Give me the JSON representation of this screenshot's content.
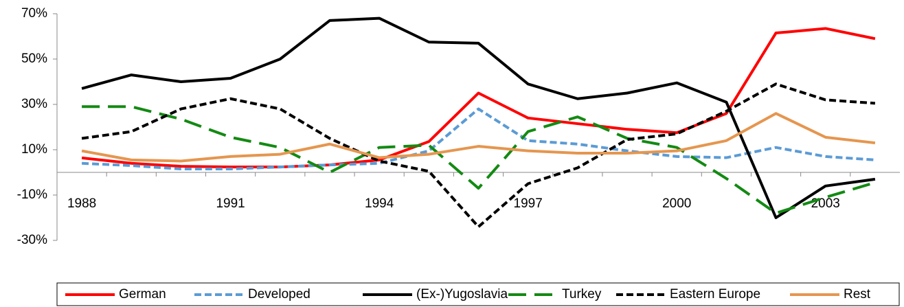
{
  "chart_data": {
    "type": "line",
    "categories": [
      "1988",
      null,
      null,
      "1991",
      null,
      null,
      "1994",
      null,
      null,
      "1997",
      null,
      null,
      "2000",
      null,
      null,
      "2003",
      null
    ],
    "ylim": [
      -30,
      70
    ],
    "yticks": [
      {
        "value": -30,
        "label": "-30%"
      },
      {
        "value": -10,
        "label": "-10%"
      },
      {
        "value": 10,
        "label": "10%"
      },
      {
        "value": 30,
        "label": "30%"
      },
      {
        "value": 50,
        "label": "50%"
      },
      {
        "value": 70,
        "label": "70%"
      }
    ],
    "grid": false,
    "legend": "bottom",
    "series": [
      {
        "name": "German",
        "color": "#ff0000",
        "dash": "solid",
        "values": [
          6.4,
          4,
          2.7,
          2.4,
          2.4,
          3.3,
          5.5,
          13.6,
          35,
          24,
          21.5,
          19,
          17.5,
          26,
          61.5,
          63.5,
          59
        ]
      },
      {
        "name": "Developed",
        "color": "#5b9bd5",
        "dash": "short",
        "values": [
          4,
          3,
          1.5,
          1.5,
          2.4,
          3.3,
          4,
          9.5,
          28,
          14,
          12.5,
          9.5,
          7,
          6.5,
          11,
          7,
          5.5
        ]
      },
      {
        "name": "(Ex-)Yugoslavia",
        "color": "#000000",
        "dash": "solid",
        "values": [
          37,
          43,
          40,
          41.5,
          50,
          67,
          68,
          57.5,
          57,
          39,
          32.5,
          35,
          39.5,
          31,
          -20,
          -6,
          -3
        ]
      },
      {
        "name": "Turkey",
        "color": "#138a13",
        "dash": "long",
        "values": [
          29,
          29,
          23.5,
          15.5,
          11,
          0,
          11,
          12,
          -7,
          18,
          24.5,
          15,
          11,
          -2.7,
          -18,
          -11,
          -4.5
        ]
      },
      {
        "name": "Eastern Europe",
        "color": "#000000",
        "dash": "short",
        "values": [
          15,
          18,
          28,
          32.5,
          28,
          15,
          5,
          0.5,
          -24,
          -5,
          2,
          14.5,
          17,
          27,
          39,
          32,
          30.5
        ]
      },
      {
        "name": "Rest",
        "color": "#e5964f",
        "dash": "solid",
        "values": [
          9.5,
          5.5,
          5,
          7,
          8,
          12.5,
          6.5,
          8,
          11.5,
          9.5,
          8.5,
          8.5,
          9.5,
          14,
          26,
          15.5,
          13
        ]
      }
    ]
  }
}
